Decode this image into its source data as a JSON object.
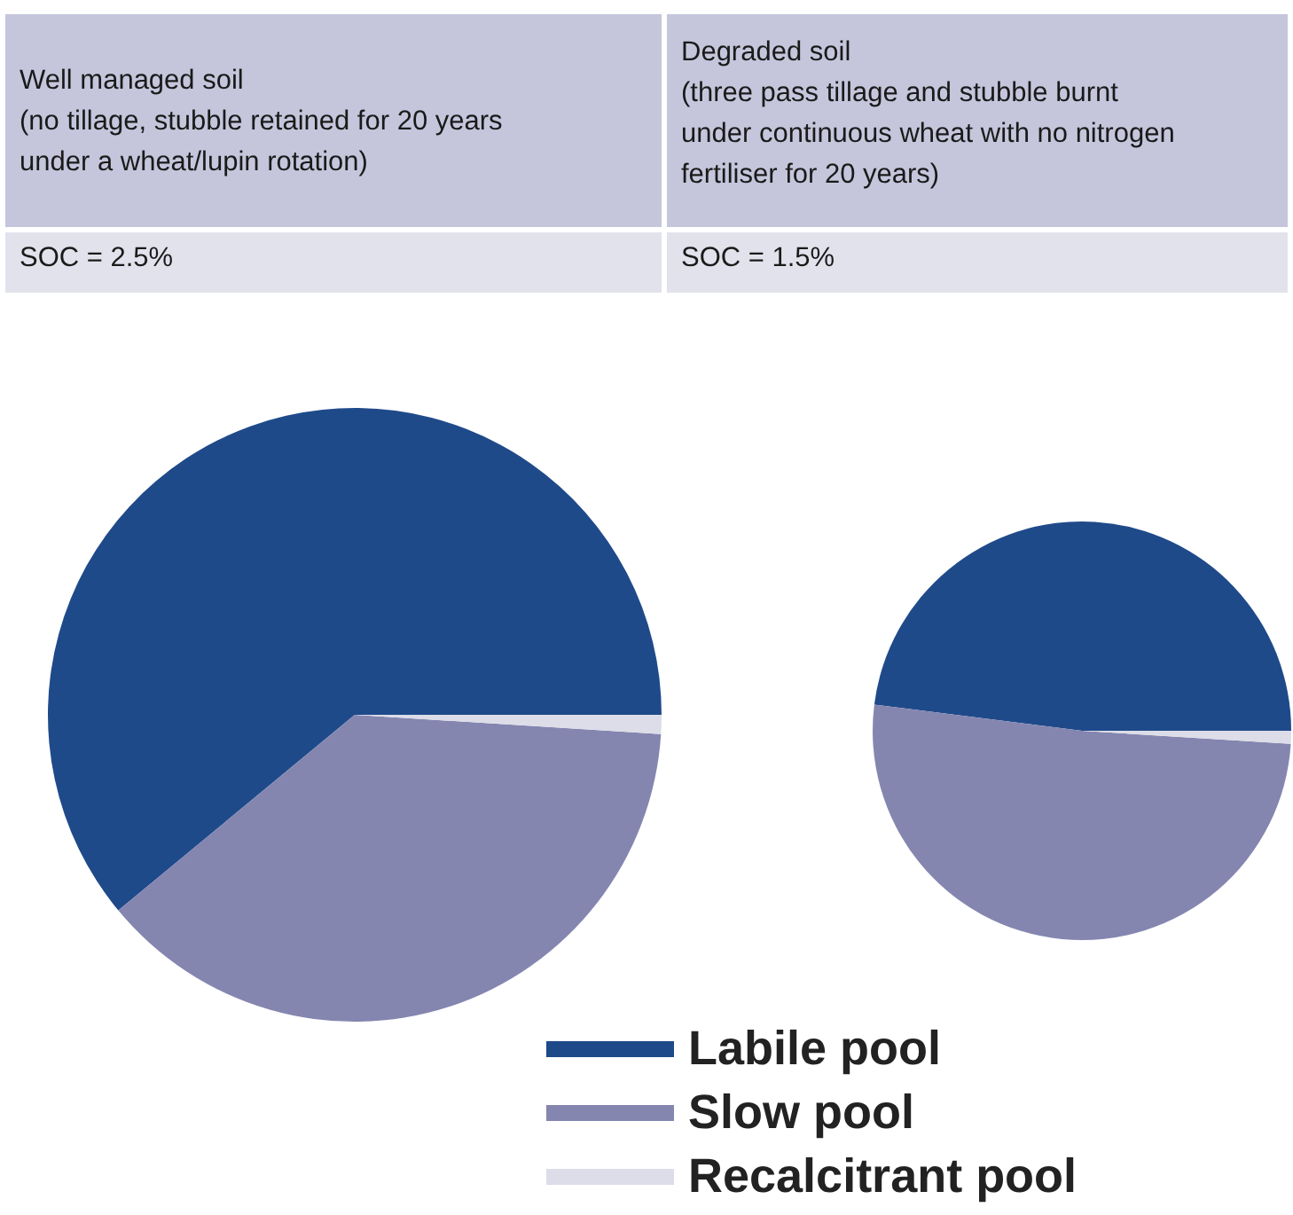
{
  "chart_data": [
    {
      "type": "pie",
      "title": "Well managed soil\n(no tillage, stubble retained for 20 years\nunder a wheat/lupin rotation)",
      "subtitle": "SOC = 2.5%",
      "categories": [
        "Labile pool",
        "Slow pool",
        "Recalcitrant pool"
      ],
      "values": [
        61,
        38,
        1
      ],
      "colors": [
        "#1f4a8a",
        "#8486b0",
        "#dcdde8"
      ],
      "legend": "bottom"
    },
    {
      "type": "pie",
      "title": "Degraded soil\n(three pass tillage and stubble burnt\nunder continuous wheat with no nitrogen\nfertiliser for 20 years)",
      "subtitle": "SOC = 1.5%",
      "values": [
        48,
        51,
        1
      ],
      "colors": [
        "#1f4a8a",
        "#8486b0",
        "#dcdde8"
      ]
    }
  ]
}
